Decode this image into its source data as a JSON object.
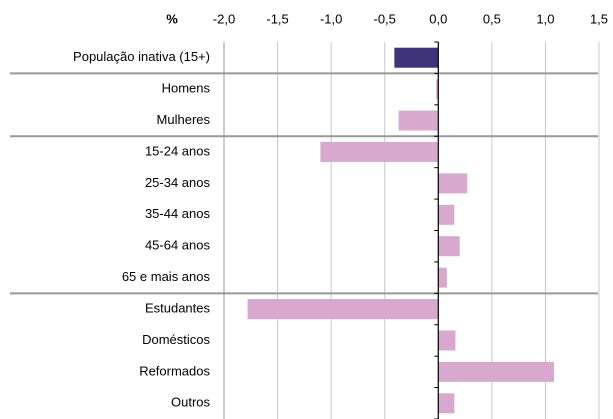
{
  "chart_data": {
    "type": "bar",
    "orientation": "horizontal",
    "x_label": "%",
    "categories": [
      "População inativa (15+)",
      "Homens",
      "Mulheres",
      "15-24 anos",
      "25-34 anos",
      "35-44 anos",
      "45-64 anos",
      "65 e mais anos",
      "Estudantes",
      "Domésticos",
      "Reformados",
      "Outros"
    ],
    "values": [
      -0.41,
      -0.02,
      -0.37,
      -1.1,
      0.27,
      0.15,
      0.2,
      0.08,
      -1.78,
      0.16,
      1.08,
      0.15
    ],
    "colors": [
      "#3f3379",
      "#d8a8cf",
      "#d8a8cf",
      "#d8a8cf",
      "#d8a8cf",
      "#d8a8cf",
      "#d8a8cf",
      "#d8a8cf",
      "#d8a8cf",
      "#d8a8cf",
      "#d8a8cf",
      "#d8a8cf"
    ],
    "xlim": [
      -2,
      1.5
    ],
    "xticks": [
      {
        "value": -2,
        "label": "-2,0"
      },
      {
        "value": -1.5,
        "label": "-1,5"
      },
      {
        "value": -1,
        "label": "-1,0"
      },
      {
        "value": -0.5,
        "label": "-0,5"
      },
      {
        "value": 0,
        "label": "0,0"
      },
      {
        "value": 0.5,
        "label": "0,5"
      },
      {
        "value": 1,
        "label": "1,0"
      },
      {
        "value": 1.5,
        "label": "1,5"
      }
    ],
    "grid": true
  }
}
